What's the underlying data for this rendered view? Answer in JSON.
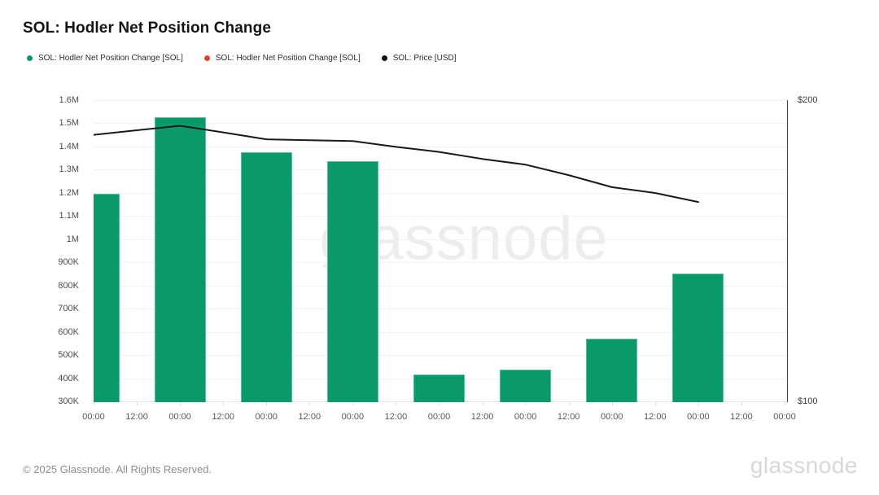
{
  "title": "SOL: Hodler Net Position Change",
  "legend": [
    {
      "label": "SOL: Hodler Net Position Change [SOL]",
      "color": "#0a9a68",
      "marker": "circle"
    },
    {
      "label": "SOL: Hodler Net Position Change [SOL]",
      "color": "#e93d2e",
      "marker": "circle"
    },
    {
      "label": "SOL: Price [USD]",
      "color": "#111111",
      "marker": "circle"
    }
  ],
  "watermark": "glassnode",
  "footer": {
    "copyright": "© 2025 Glassnode. All Rights Reserved.",
    "logo": "glassnode"
  },
  "chart_data": {
    "type": "bar",
    "title": "SOL: Hodler Net Position Change",
    "grid": true,
    "x_ticks": [
      "00:00",
      "12:00",
      "00:00",
      "12:00",
      "00:00",
      "12:00",
      "00:00",
      "12:00",
      "00:00",
      "12:00",
      "00:00",
      "12:00",
      "00:00",
      "12:00",
      "00:00",
      "12:00",
      "00:00"
    ],
    "left_axis": {
      "unit": "SOL",
      "min": 300000,
      "max": 1600000,
      "ticks": [
        "1.6M",
        "1.5M",
        "1.4M",
        "1.3M",
        "1.2M",
        "1.1M",
        "1M",
        "900K",
        "800K",
        "700K",
        "600K",
        "500K",
        "400K",
        "300K"
      ]
    },
    "right_axis": {
      "unit": "USD",
      "min": 100,
      "max": 200,
      "ticks": [
        "$200",
        "$100"
      ]
    },
    "series": [
      {
        "name": "SOL: Hodler Net Position Change [SOL]",
        "type": "bar",
        "color": "#0a9a68",
        "points": [
          {
            "tick": 0,
            "value": 1200000
          },
          {
            "tick": 2,
            "value": 1530000
          },
          {
            "tick": 4,
            "value": 1380000
          },
          {
            "tick": 6,
            "value": 1340000
          },
          {
            "tick": 8,
            "value": 420000
          },
          {
            "tick": 10,
            "value": 440000
          },
          {
            "tick": 12,
            "value": 575000
          },
          {
            "tick": 14,
            "value": 855000
          }
        ]
      },
      {
        "name": "SOL: Price [USD]",
        "type": "line",
        "color": "#191919",
        "points": [
          {
            "tick": 0,
            "value": 188.5
          },
          {
            "tick": 1,
            "value": 190.0
          },
          {
            "tick": 2,
            "value": 191.5
          },
          {
            "tick": 3,
            "value": 189.3
          },
          {
            "tick": 4,
            "value": 187.0
          },
          {
            "tick": 5,
            "value": 186.7
          },
          {
            "tick": 6,
            "value": 186.4
          },
          {
            "tick": 7,
            "value": 184.5
          },
          {
            "tick": 8,
            "value": 182.8
          },
          {
            "tick": 9,
            "value": 180.5
          },
          {
            "tick": 10,
            "value": 178.6
          },
          {
            "tick": 11,
            "value": 175.1
          },
          {
            "tick": 12,
            "value": 171.1
          },
          {
            "tick": 13,
            "value": 169.2
          },
          {
            "tick": 14,
            "value": 166.2
          }
        ]
      }
    ]
  }
}
